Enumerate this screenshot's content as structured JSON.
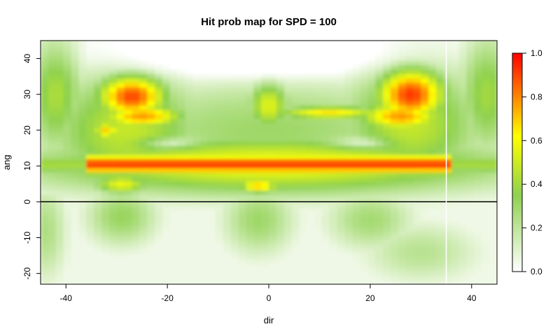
{
  "chart_data": {
    "type": "heatmap",
    "title": "Hit prob map for SPD = 100",
    "xlabel": "dir",
    "ylabel": "ang",
    "xlim": [
      -45,
      45
    ],
    "ylim": [
      -23,
      45
    ],
    "xticks": [
      "-40",
      "-20",
      "0",
      "20",
      "40"
    ],
    "xtick_values": [
      -40,
      -20,
      0,
      20,
      40
    ],
    "yticks": [
      "-20",
      "-10",
      "0",
      "10",
      "20",
      "30",
      "40"
    ],
    "ytick_values": [
      -20,
      -10,
      0,
      10,
      20,
      30,
      40
    ],
    "colorbar": {
      "range": [
        0,
        1
      ],
      "ticks": [
        "0.0",
        "0.2",
        "0.4",
        "0.6",
        "0.8",
        "1.0"
      ],
      "tick_values": [
        0,
        0.2,
        0.4,
        0.6,
        0.8,
        1.0
      ],
      "colors": [
        "#ffffff",
        "#8fd14f",
        "#ffff00",
        "#ff0000"
      ]
    },
    "reference_lines": [
      {
        "orientation": "horizontal",
        "value": 0,
        "color": "#000000"
      },
      {
        "orientation": "vertical",
        "value": 35,
        "color": "#ffffff"
      }
    ],
    "features": [
      {
        "x": [
          -33,
          -17
        ],
        "y": [
          19,
          35
        ],
        "level": 0.8
      },
      {
        "x": [
          20,
          34
        ],
        "y": [
          22,
          36
        ],
        "level": 0.85
      },
      {
        "x": [
          -35,
          36
        ],
        "y": [
          8,
          14
        ],
        "level": 0.9
      },
      {
        "x": [
          -5,
          -2
        ],
        "y": [
          3,
          7
        ],
        "level": 0.75
      },
      {
        "x": [
          -25,
          25
        ],
        "y": [
          -10,
          0
        ],
        "level": 0.3
      }
    ]
  }
}
